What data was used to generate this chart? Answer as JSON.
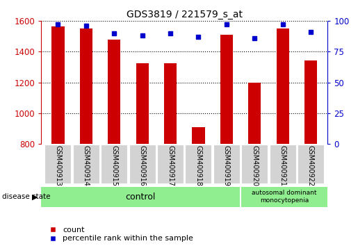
{
  "title": "GDS3819 / 221579_s_at",
  "samples": [
    "GSM400913",
    "GSM400914",
    "GSM400915",
    "GSM400916",
    "GSM400917",
    "GSM400918",
    "GSM400919",
    "GSM400920",
    "GSM400921",
    "GSM400922"
  ],
  "counts": [
    1565,
    1550,
    1480,
    1325,
    1325,
    910,
    1510,
    1200,
    1550,
    1345
  ],
  "percentiles": [
    97,
    96,
    90,
    88,
    90,
    87,
    97,
    86,
    97,
    91
  ],
  "ylim_left": [
    800,
    1600
  ],
  "ylim_right": [
    0,
    100
  ],
  "yticks_left": [
    800,
    1000,
    1200,
    1400,
    1600
  ],
  "yticks_right": [
    0,
    25,
    50,
    75,
    100
  ],
  "bar_color": "#cc0000",
  "dot_color": "#0000cc",
  "bar_width": 0.45,
  "grid_color": "#000000",
  "label_bg": "#d3d3d3",
  "control_bg": "#90ee90",
  "control_label": "control",
  "disease_label": "autosomal dominant\nmonocytopenia",
  "disease_state_label": "disease state",
  "n_control": 7,
  "legend_count_label": "count",
  "legend_pct_label": "percentile rank within the sample",
  "left_tick_color": "#cc0000",
  "right_tick_color": "#0000cc"
}
